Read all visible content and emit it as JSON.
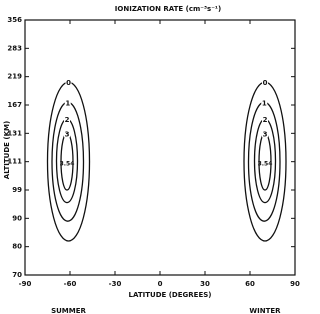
{
  "chart_data": {
    "type": "contour",
    "title": "IONIZATION RATE (cm⁻³s⁻¹)",
    "x_label": "LATITUDE (DEGREES)",
    "y_label": "ALTITUDE (KM)",
    "xlim": [
      -90,
      90
    ],
    "xticks": [
      -90,
      -60,
      -30,
      0,
      30,
      60,
      90
    ],
    "y_levels": [
      70,
      80,
      90,
      99,
      111,
      131,
      167,
      219,
      283,
      356
    ],
    "regions": [
      {
        "name": "SUMMER",
        "rings": [
          {
            "level": 0,
            "lat": [
              -75,
              -47
            ],
            "alt": [
              82,
              209
            ]
          },
          {
            "level": 1,
            "lat": [
              -72,
              -51
            ],
            "alt": [
              89,
              172
            ]
          },
          {
            "level": 2,
            "lat": [
              -69,
              -55
            ],
            "alt": [
              95,
              149
            ]
          },
          {
            "level": 3,
            "lat": [
              -66,
              -58
            ],
            "alt": [
              99,
              131
            ]
          },
          {
            "level": 3.54,
            "lat": [
              -64,
              -60
            ],
            "alt": [
              105,
              118
            ]
          }
        ]
      },
      {
        "name": "WINTER",
        "rings": [
          {
            "level": 0,
            "lat": [
              56,
              84
            ],
            "alt": [
              82,
              209
            ]
          },
          {
            "level": 1,
            "lat": [
              59,
              80
            ],
            "alt": [
              89,
              172
            ]
          },
          {
            "level": 2,
            "lat": [
              63,
              77
            ],
            "alt": [
              95,
              149
            ]
          },
          {
            "level": 3,
            "lat": [
              66,
              74
            ],
            "alt": [
              99,
              131
            ]
          },
          {
            "level": 3.54,
            "lat": [
              68,
              72
            ],
            "alt": [
              105,
              118
            ]
          }
        ]
      }
    ]
  }
}
